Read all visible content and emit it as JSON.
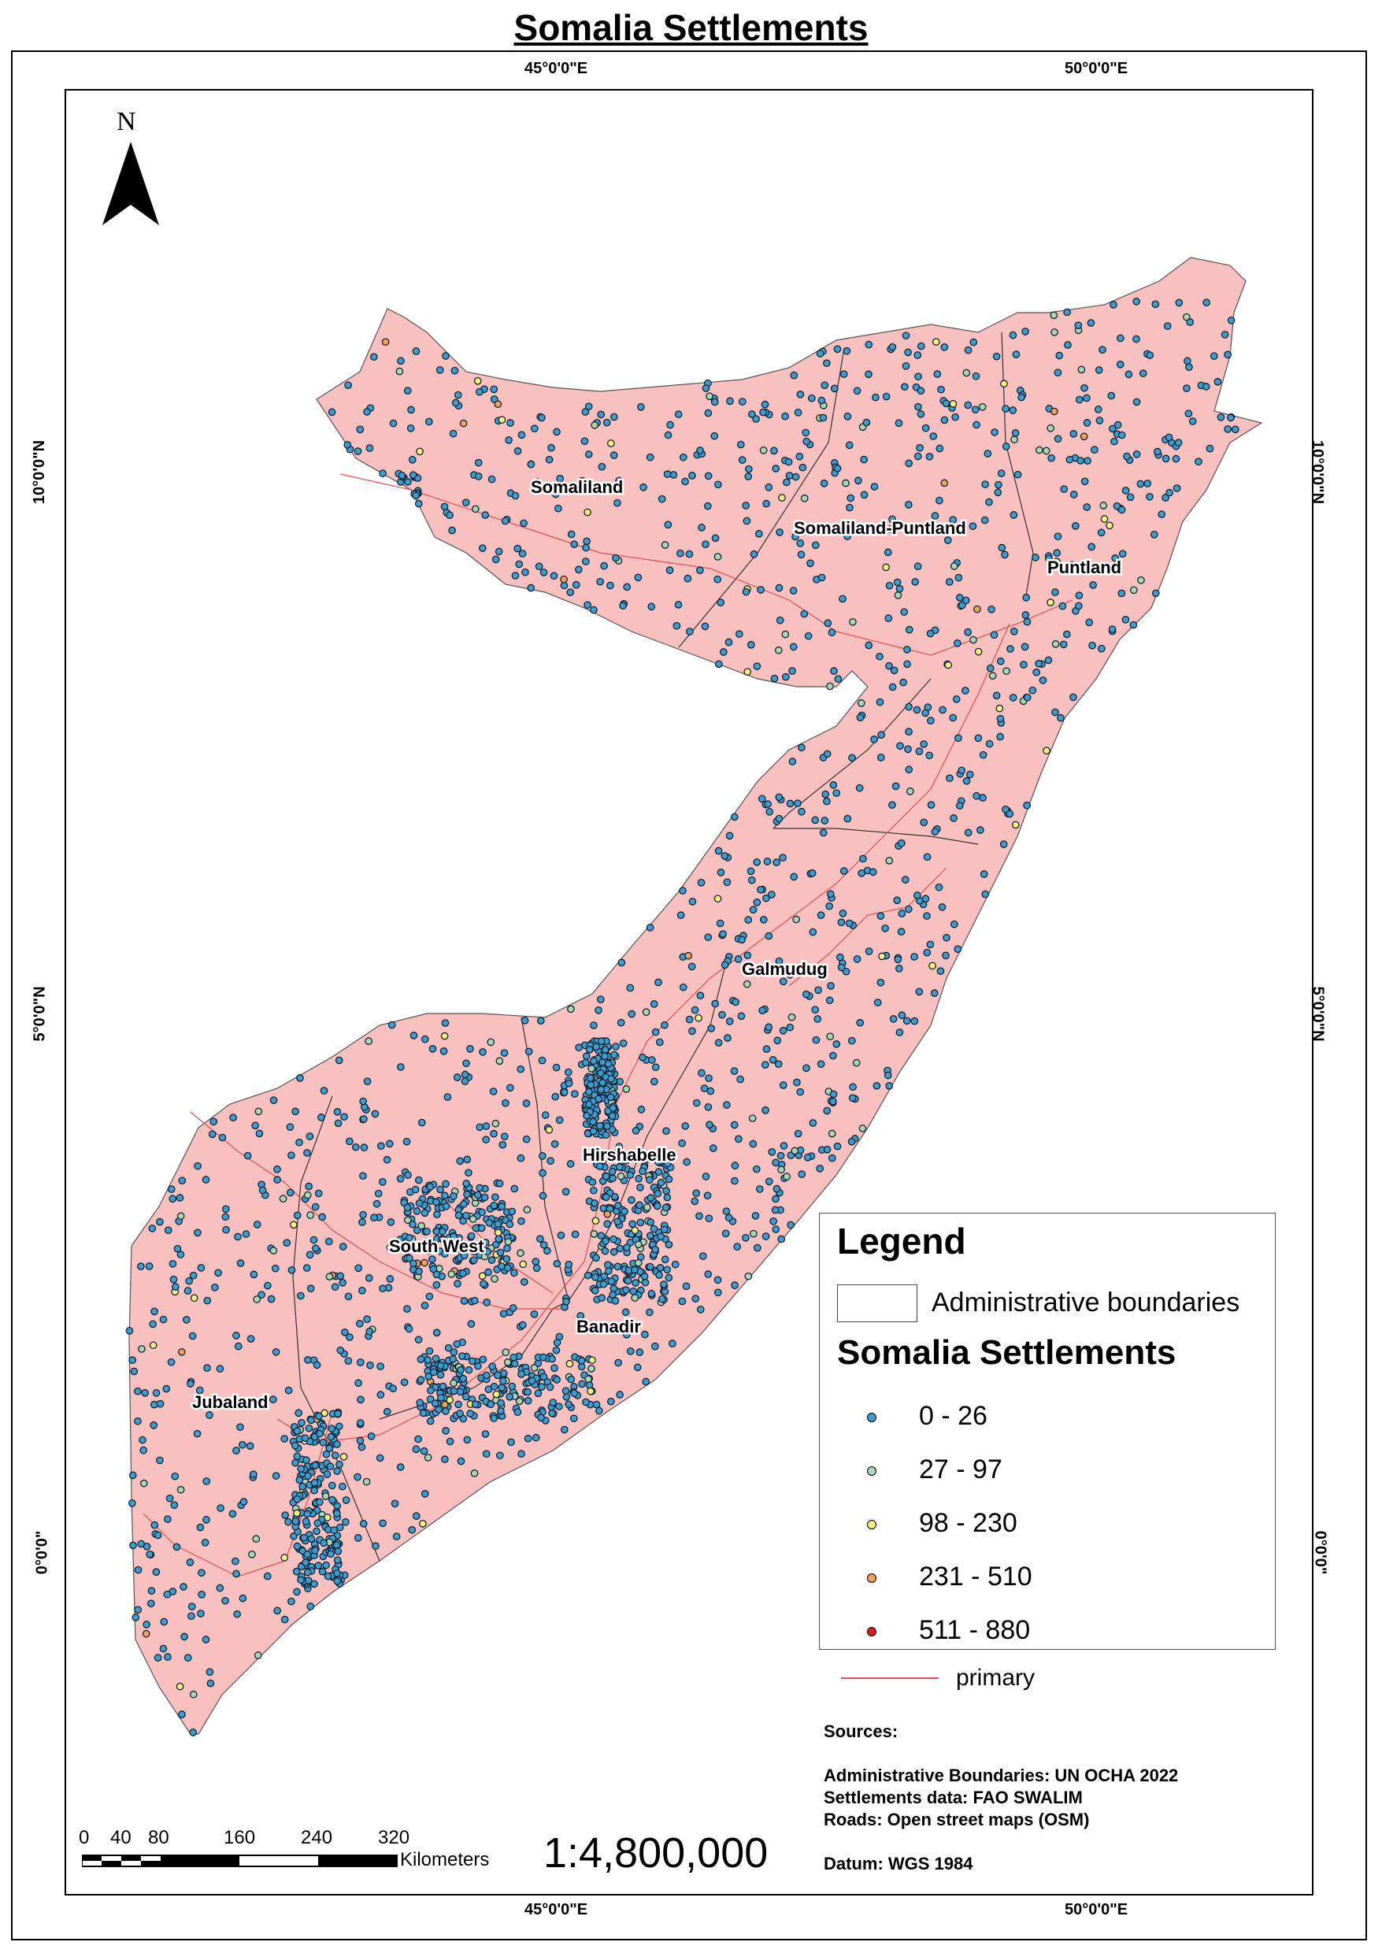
{
  "title": "Somalia Settlements",
  "grid": {
    "top_labels": [
      "45°0'0\"E",
      "50°0'0\"E"
    ],
    "bottom_labels": [
      "45°0'0\"E",
      "50°0'0\"E"
    ],
    "left_labels": [
      "10°0'0\"N",
      "5°0'0\"N",
      "0°0'0\""
    ],
    "right_labels": [
      "10°0'0\"N",
      "5°0'0\"N",
      "0°0'0\""
    ]
  },
  "north_arrow": {
    "label": "N",
    "icon": "north-arrow-icon"
  },
  "regions": [
    "Somaliland",
    "Somaliland-Puntland",
    "Puntland",
    "Galmudug",
    "Hirshabelle",
    "South West",
    "Banadir",
    "Jubaland"
  ],
  "legend": {
    "title": "Legend",
    "admin_label": "Administrative boundaries",
    "settlements_title": "Somalia Settlements",
    "classes": [
      {
        "label": "0 - 26",
        "color": "#3a9fd0"
      },
      {
        "label": "27 - 97",
        "color": "#a8d8b0"
      },
      {
        "label": "98 - 230",
        "color": "#f5f07a"
      },
      {
        "label": "231 - 510",
        "color": "#f4a05a"
      },
      {
        "label": "511 - 880",
        "color": "#d42020"
      }
    ],
    "primary_label": "primary",
    "primary_color": "#e05050"
  },
  "sources": {
    "heading": "Sources:",
    "admin": "Administrative Boundaries: UN OCHA 2022",
    "settlements": "Settlements data: FAO SWALIM",
    "roads": "Roads: Open street maps (OSM)",
    "datum": "Datum: WGS 1984"
  },
  "scale": {
    "ratio": "1:4,800,000",
    "ticks": [
      "0",
      "40",
      "80",
      "160",
      "240",
      "320"
    ],
    "unit": "Kilometers"
  },
  "colors": {
    "land": "#f9c0c0",
    "boundary": "#333333"
  }
}
